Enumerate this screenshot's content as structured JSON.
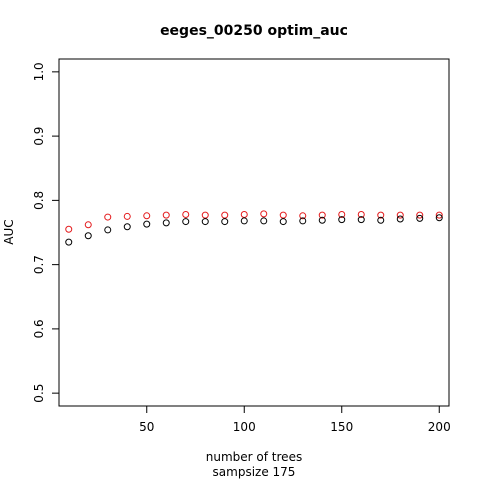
{
  "chart_data": {
    "type": "scatter",
    "title": "eeges_00250 optim_auc",
    "xlabel": "number of trees",
    "xlabel2": "sampsize 175",
    "ylabel": "AUC",
    "xlim": [
      5,
      205
    ],
    "ylim": [
      0.48,
      1.02
    ],
    "xticks": [
      50,
      100,
      150,
      200
    ],
    "yticks": [
      0.5,
      0.6,
      0.7,
      0.8,
      0.9,
      1.0
    ],
    "ytick_labels": [
      "0.5",
      "0.6",
      "0.7",
      "0.8",
      "0.9",
      "1.0"
    ],
    "grid": false,
    "x": [
      10,
      20,
      30,
      40,
      50,
      60,
      70,
      80,
      90,
      100,
      110,
      120,
      130,
      140,
      150,
      160,
      170,
      180,
      190,
      200
    ],
    "series": [
      {
        "color": "#e41a1c",
        "values": [
          0.755,
          0.762,
          0.774,
          0.775,
          0.776,
          0.777,
          0.778,
          0.777,
          0.777,
          0.778,
          0.779,
          0.777,
          0.776,
          0.777,
          0.778,
          0.778,
          0.777,
          0.777,
          0.777,
          0.777
        ]
      },
      {
        "color": "#000000",
        "values": [
          0.735,
          0.745,
          0.754,
          0.759,
          0.763,
          0.765,
          0.767,
          0.767,
          0.767,
          0.768,
          0.768,
          0.767,
          0.768,
          0.769,
          0.77,
          0.77,
          0.769,
          0.771,
          0.772,
          0.773
        ]
      }
    ]
  }
}
